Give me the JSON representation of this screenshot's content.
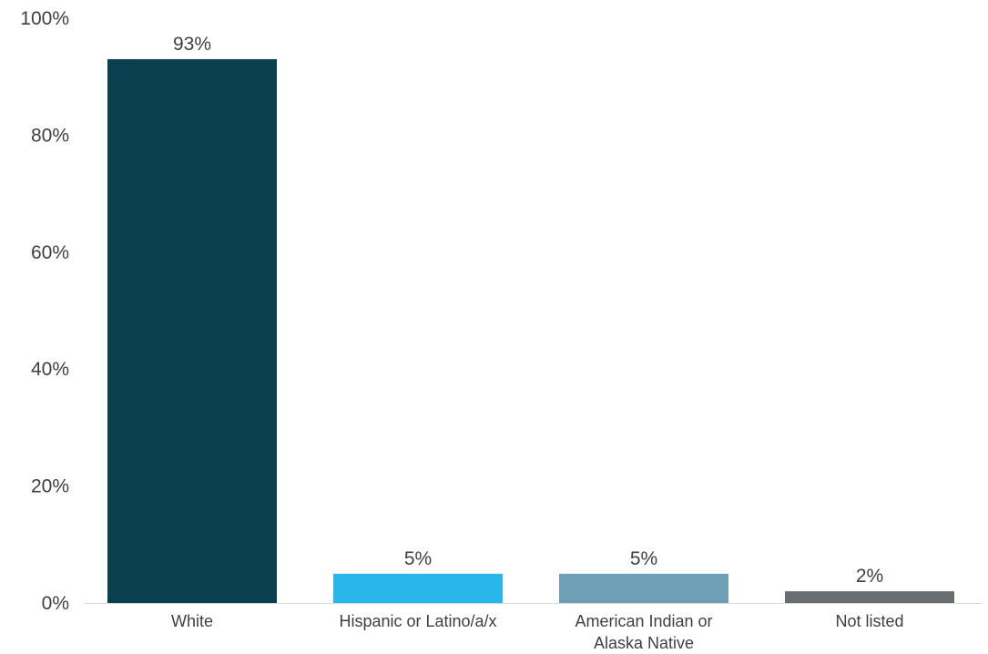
{
  "chart_data": {
    "type": "bar",
    "categories": [
      "White",
      "Hispanic or Latino/a/x",
      "American Indian or Alaska Native",
      "Not listed"
    ],
    "category_lines": [
      [
        "White"
      ],
      [
        "Hispanic or Latino/a/x"
      ],
      [
        "American Indian or",
        "Alaska Native"
      ],
      [
        "Not listed"
      ]
    ],
    "values": [
      93,
      5,
      5,
      2
    ],
    "data_labels": [
      "93%",
      "5%",
      "5%",
      "2%"
    ],
    "colors": [
      "#0b4050",
      "#29b6ea",
      "#6f9fb6",
      "#6a6d70"
    ],
    "title": "",
    "xlabel": "",
    "ylabel": "",
    "ylim": [
      0,
      100
    ],
    "yticks": [
      0,
      20,
      40,
      60,
      80,
      100
    ],
    "ytick_labels": [
      "0%",
      "20%",
      "40%",
      "60%",
      "80%",
      "100%"
    ],
    "grid": false,
    "legend": false
  }
}
